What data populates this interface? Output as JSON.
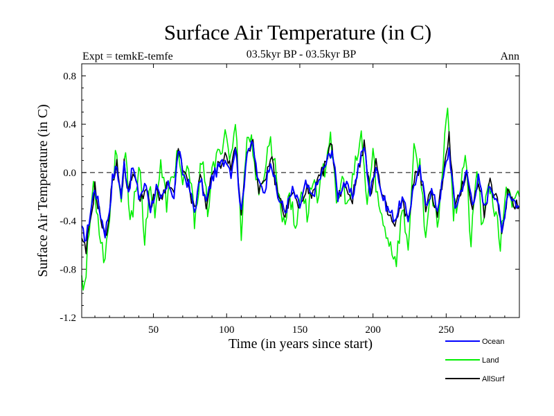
{
  "chart_data": {
    "type": "line",
    "title": "Surface Air Temperature (in C)",
    "subtitle": "03.5kyr BP - 03.5kyr BP",
    "left_label": "Expt = temkE-temfe",
    "right_label": "Ann",
    "xlabel": "Time (in years since start)",
    "ylabel": "Surface Air Temperature (in C)",
    "xlim": [
      1,
      300
    ],
    "ylim": [
      -1.2,
      0.9
    ],
    "x_ticks": [
      50,
      100,
      150,
      200,
      250
    ],
    "x_tick_labels": [
      "50",
      "100",
      "150",
      "200",
      "250"
    ],
    "y_ticks": [
      -1.2,
      -0.8,
      -0.4,
      0.0,
      0.4,
      0.8
    ],
    "y_tick_labels": [
      "-1.2",
      "-0.8",
      "-0.4",
      "0.0",
      "0.4",
      "0.8"
    ],
    "reference_line": 0.0,
    "legend_position": "bottom-right",
    "series": [
      {
        "name": "Ocean",
        "color": "#0000ff",
        "anchors": [
          [
            1,
            -0.48
          ],
          [
            4,
            -0.55
          ],
          [
            8,
            -0.25
          ],
          [
            10,
            -0.12
          ],
          [
            13,
            -0.3
          ],
          [
            17,
            -0.5
          ],
          [
            20,
            -0.3
          ],
          [
            22,
            -0.05
          ],
          [
            25,
            0.05
          ],
          [
            28,
            -0.2
          ],
          [
            30,
            0.08
          ],
          [
            33,
            -0.15
          ],
          [
            36,
            0.05
          ],
          [
            40,
            -0.2
          ],
          [
            45,
            -0.1
          ],
          [
            48,
            -0.3
          ],
          [
            52,
            -0.12
          ],
          [
            55,
            -0.25
          ],
          [
            58,
            -0.15
          ],
          [
            61,
            -0.1
          ],
          [
            64,
            -0.2
          ],
          [
            67,
            0.2
          ],
          [
            70,
            0.0
          ],
          [
            74,
            -0.1
          ],
          [
            78,
            -0.32
          ],
          [
            82,
            -0.05
          ],
          [
            86,
            -0.25
          ],
          [
            90,
            -0.05
          ],
          [
            95,
            0.05
          ],
          [
            100,
            0.12
          ],
          [
            103,
            0.0
          ],
          [
            106,
            0.22
          ],
          [
            110,
            -0.35
          ],
          [
            114,
            0.2
          ],
          [
            118,
            0.22
          ],
          [
            122,
            -0.1
          ],
          [
            126,
            -0.15
          ],
          [
            130,
            0.12
          ],
          [
            135,
            -0.2
          ],
          [
            140,
            -0.32
          ],
          [
            145,
            -0.15
          ],
          [
            150,
            -0.28
          ],
          [
            154,
            -0.1
          ],
          [
            158,
            -0.2
          ],
          [
            162,
            -0.1
          ],
          [
            167,
            0.05
          ],
          [
            172,
            0.2
          ],
          [
            176,
            -0.2
          ],
          [
            180,
            -0.08
          ],
          [
            186,
            -0.2
          ],
          [
            190,
            0.05
          ],
          [
            194,
            0.22
          ],
          [
            198,
            -0.18
          ],
          [
            202,
            0.08
          ],
          [
            206,
            -0.18
          ],
          [
            210,
            -0.3
          ],
          [
            215,
            -0.38
          ],
          [
            220,
            -0.22
          ],
          [
            224,
            -0.38
          ],
          [
            228,
            -0.1
          ],
          [
            232,
            0.02
          ],
          [
            236,
            -0.25
          ],
          [
            240,
            -0.15
          ],
          [
            244,
            -0.3
          ],
          [
            248,
            -0.05
          ],
          [
            252,
            0.2
          ],
          [
            256,
            -0.3
          ],
          [
            260,
            -0.15
          ],
          [
            264,
            0.0
          ],
          [
            268,
            -0.25
          ],
          [
            272,
            -0.05
          ],
          [
            276,
            -0.3
          ],
          [
            280,
            -0.1
          ],
          [
            285,
            -0.22
          ],
          [
            288,
            -0.5
          ],
          [
            292,
            -0.15
          ],
          [
            296,
            -0.22
          ],
          [
            300,
            -0.3
          ]
        ],
        "noise": 0.05
      },
      {
        "name": "Land",
        "color": "#00ee00",
        "anchors": [
          [
            1,
            -0.82
          ],
          [
            3,
            -0.95
          ],
          [
            6,
            -0.5
          ],
          [
            9,
            -0.08
          ],
          [
            12,
            -0.35
          ],
          [
            16,
            -0.7
          ],
          [
            19,
            -0.5
          ],
          [
            22,
            -0.05
          ],
          [
            25,
            0.18
          ],
          [
            28,
            -0.25
          ],
          [
            31,
            0.15
          ],
          [
            34,
            -0.45
          ],
          [
            37,
            -0.2
          ],
          [
            41,
            0.08
          ],
          [
            44,
            -0.6
          ],
          [
            48,
            -0.1
          ],
          [
            51,
            -0.3
          ],
          [
            55,
            0.05
          ],
          [
            59,
            -0.25
          ],
          [
            63,
            -0.05
          ],
          [
            67,
            0.2
          ],
          [
            70,
            -0.15
          ],
          [
            74,
            0.05
          ],
          [
            78,
            -0.38
          ],
          [
            83,
            0.1
          ],
          [
            87,
            -0.3
          ],
          [
            91,
            0.05
          ],
          [
            95,
            0.15
          ],
          [
            99,
            0.35
          ],
          [
            103,
            0.1
          ],
          [
            106,
            0.42
          ],
          [
            110,
            -0.48
          ],
          [
            114,
            0.32
          ],
          [
            118,
            0.22
          ],
          [
            122,
            -0.25
          ],
          [
            126,
            0.05
          ],
          [
            130,
            0.28
          ],
          [
            135,
            -0.1
          ],
          [
            139,
            -0.45
          ],
          [
            143,
            -0.15
          ],
          [
            147,
            -0.5
          ],
          [
            151,
            -0.1
          ],
          [
            155,
            -0.35
          ],
          [
            159,
            -0.05
          ],
          [
            163,
            -0.2
          ],
          [
            167,
            0.05
          ],
          [
            171,
            0.35
          ],
          [
            175,
            -0.3
          ],
          [
            179,
            -0.05
          ],
          [
            183,
            -0.3
          ],
          [
            188,
            0.05
          ],
          [
            192,
            0.3
          ],
          [
            196,
            -0.25
          ],
          [
            200,
            0.15
          ],
          [
            204,
            -0.3
          ],
          [
            208,
            -0.45
          ],
          [
            212,
            -0.6
          ],
          [
            216,
            -0.72
          ],
          [
            220,
            -0.3
          ],
          [
            224,
            -0.6
          ],
          [
            228,
            0.15
          ],
          [
            232,
            0.05
          ],
          [
            236,
            -0.5
          ],
          [
            240,
            -0.2
          ],
          [
            244,
            -0.45
          ],
          [
            248,
            0.1
          ],
          [
            251,
            0.62
          ],
          [
            255,
            -0.35
          ],
          [
            259,
            -0.15
          ],
          [
            263,
            0.15
          ],
          [
            267,
            -0.6
          ],
          [
            271,
            0.05
          ],
          [
            275,
            -0.5
          ],
          [
            279,
            -0.05
          ],
          [
            283,
            -0.3
          ],
          [
            287,
            -0.6
          ],
          [
            291,
            -0.1
          ],
          [
            295,
            -0.3
          ],
          [
            300,
            -0.2
          ]
        ],
        "noise": 0.09
      },
      {
        "name": "AllSurf",
        "color": "#000000",
        "anchors": [
          [
            1,
            -0.58
          ],
          [
            4,
            -0.65
          ],
          [
            8,
            -0.3
          ],
          [
            10,
            -0.12
          ],
          [
            13,
            -0.32
          ],
          [
            17,
            -0.55
          ],
          [
            20,
            -0.33
          ],
          [
            22,
            -0.05
          ],
          [
            25,
            0.07
          ],
          [
            28,
            -0.2
          ],
          [
            30,
            0.08
          ],
          [
            33,
            -0.18
          ],
          [
            36,
            0.03
          ],
          [
            40,
            -0.2
          ],
          [
            45,
            -0.15
          ],
          [
            48,
            -0.3
          ],
          [
            52,
            -0.15
          ],
          [
            55,
            -0.2
          ],
          [
            58,
            -0.15
          ],
          [
            61,
            -0.1
          ],
          [
            64,
            -0.2
          ],
          [
            67,
            0.2
          ],
          [
            70,
            0.0
          ],
          [
            74,
            -0.1
          ],
          [
            78,
            -0.33
          ],
          [
            82,
            -0.03
          ],
          [
            86,
            -0.26
          ],
          [
            90,
            -0.04
          ],
          [
            95,
            0.07
          ],
          [
            100,
            0.15
          ],
          [
            103,
            0.02
          ],
          [
            106,
            0.25
          ],
          [
            110,
            -0.38
          ],
          [
            114,
            0.22
          ],
          [
            118,
            0.22
          ],
          [
            122,
            -0.12
          ],
          [
            126,
            -0.12
          ],
          [
            130,
            0.15
          ],
          [
            135,
            -0.18
          ],
          [
            140,
            -0.35
          ],
          [
            145,
            -0.15
          ],
          [
            150,
            -0.32
          ],
          [
            154,
            -0.12
          ],
          [
            158,
            -0.22
          ],
          [
            162,
            -0.1
          ],
          [
            167,
            0.05
          ],
          [
            172,
            0.24
          ],
          [
            176,
            -0.22
          ],
          [
            180,
            -0.08
          ],
          [
            186,
            -0.22
          ],
          [
            190,
            0.05
          ],
          [
            194,
            0.24
          ],
          [
            198,
            -0.2
          ],
          [
            202,
            0.1
          ],
          [
            206,
            -0.2
          ],
          [
            210,
            -0.33
          ],
          [
            215,
            -0.45
          ],
          [
            220,
            -0.24
          ],
          [
            224,
            -0.42
          ],
          [
            228,
            -0.05
          ],
          [
            232,
            0.03
          ],
          [
            236,
            -0.3
          ],
          [
            240,
            -0.16
          ],
          [
            244,
            -0.33
          ],
          [
            248,
            -0.03
          ],
          [
            252,
            0.3
          ],
          [
            256,
            -0.32
          ],
          [
            260,
            -0.15
          ],
          [
            264,
            0.02
          ],
          [
            268,
            -0.32
          ],
          [
            272,
            -0.05
          ],
          [
            276,
            -0.34
          ],
          [
            280,
            -0.1
          ],
          [
            285,
            -0.24
          ],
          [
            288,
            -0.52
          ],
          [
            292,
            -0.15
          ],
          [
            296,
            -0.24
          ],
          [
            300,
            -0.28
          ]
        ],
        "noise": 0.055
      }
    ]
  }
}
